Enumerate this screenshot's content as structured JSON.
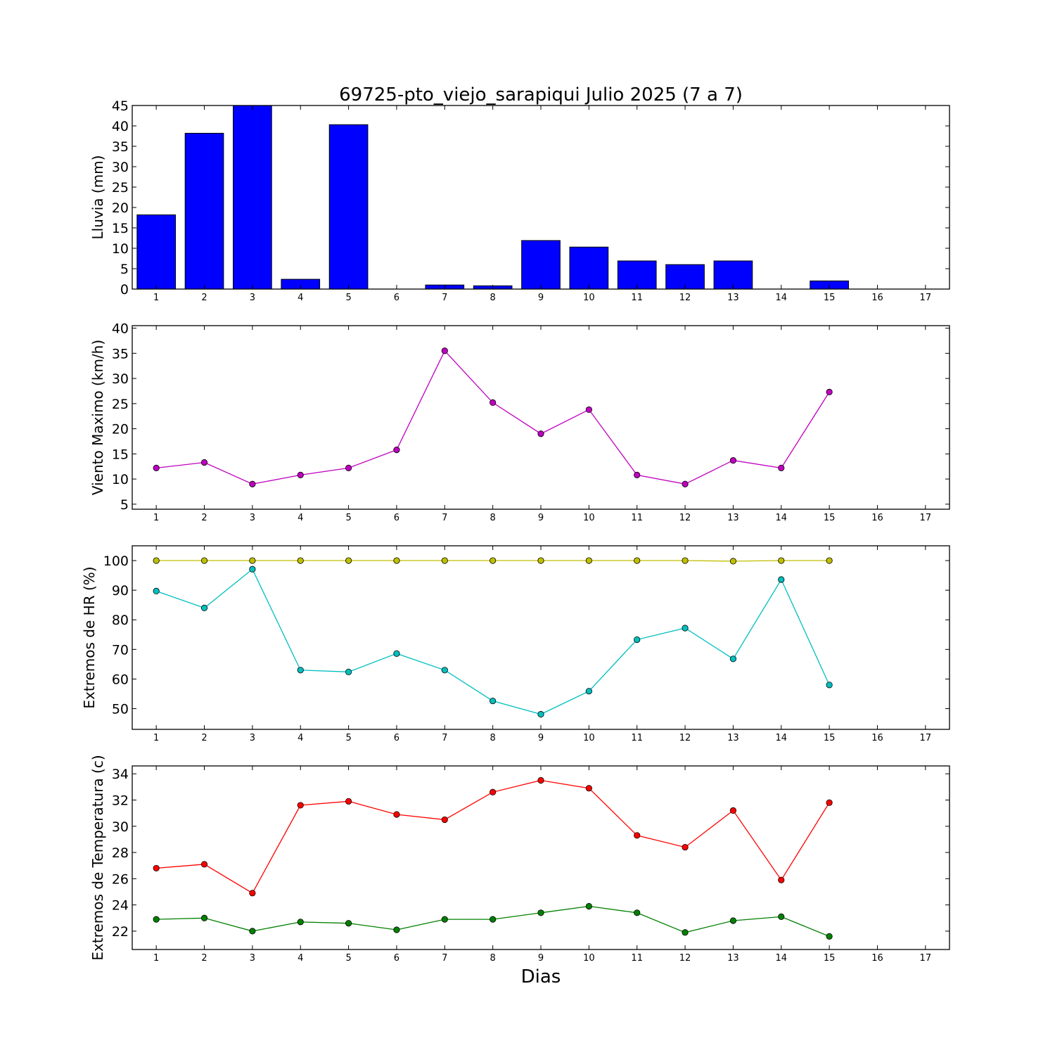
{
  "title": "69725-pto_viejo_sarapiqui Julio 2025  (7 a 7)",
  "xlabel": "Dias",
  "chart_data": [
    {
      "type": "bar",
      "ylabel": "Lluvia (mm)",
      "ylim": [
        0,
        45
      ],
      "yticks": [
        0,
        5,
        10,
        15,
        20,
        25,
        30,
        35,
        40,
        45
      ],
      "xlim": [
        0.5,
        17.5
      ],
      "xticks": [
        1,
        2,
        3,
        4,
        5,
        6,
        7,
        8,
        9,
        10,
        11,
        12,
        13,
        14,
        15,
        16,
        17
      ],
      "grid": false,
      "series": [
        {
          "color": "#0000ff",
          "x": [
            1,
            2,
            3,
            4,
            5,
            6,
            7,
            8,
            9,
            10,
            11,
            12,
            13,
            14,
            15
          ],
          "values": [
            18.2,
            38.2,
            45.0,
            2.4,
            40.3,
            0.0,
            1.0,
            0.8,
            11.9,
            10.3,
            6.9,
            6.0,
            6.9,
            0.0,
            2.0
          ]
        }
      ]
    },
    {
      "type": "line",
      "ylabel": "Viento Maximo (km/h)",
      "ylim": [
        4,
        40.5
      ],
      "yticks": [
        5,
        10,
        15,
        20,
        25,
        30,
        35,
        40
      ],
      "xlim": [
        0.5,
        17.5
      ],
      "xticks": [
        1,
        2,
        3,
        4,
        5,
        6,
        7,
        8,
        9,
        10,
        11,
        12,
        13,
        14,
        15,
        16,
        17
      ],
      "grid": false,
      "series": [
        {
          "color": "#bf00bf",
          "x": [
            1,
            2,
            3,
            4,
            5,
            6,
            7,
            8,
            9,
            10,
            11,
            12,
            13,
            14,
            15
          ],
          "values": [
            12.2,
            13.3,
            9.0,
            10.8,
            12.2,
            15.8,
            35.5,
            25.2,
            19.0,
            23.8,
            10.8,
            9.0,
            13.7,
            12.2,
            27.3
          ]
        }
      ]
    },
    {
      "type": "line",
      "ylabel": "Extremos de HR (%)",
      "ylim": [
        43,
        105
      ],
      "yticks": [
        50,
        60,
        70,
        80,
        90,
        100
      ],
      "xlim": [
        0.5,
        17.5
      ],
      "xticks": [
        1,
        2,
        3,
        4,
        5,
        6,
        7,
        8,
        9,
        10,
        11,
        12,
        13,
        14,
        15,
        16,
        17
      ],
      "grid": false,
      "series": [
        {
          "color": "#bfbf00",
          "x": [
            1,
            2,
            3,
            4,
            5,
            6,
            7,
            8,
            9,
            10,
            11,
            12,
            13,
            14,
            15
          ],
          "values": [
            100,
            100,
            100,
            100,
            100,
            100,
            100,
            100,
            100,
            100,
            100,
            100,
            99.8,
            100,
            100
          ]
        },
        {
          "color": "#00bfbf",
          "x": [
            1,
            2,
            3,
            4,
            5,
            6,
            7,
            8,
            9,
            10,
            11,
            12,
            13,
            14,
            15
          ],
          "values": [
            89.7,
            84.0,
            97.1,
            63.0,
            62.4,
            68.6,
            63.0,
            52.6,
            48.1,
            55.9,
            73.3,
            77.2,
            66.8,
            93.6,
            58.0
          ]
        }
      ]
    },
    {
      "type": "line",
      "ylabel": "Extremos de Temperatura (c)",
      "ylim": [
        20.6,
        34.6
      ],
      "yticks": [
        22,
        24,
        26,
        28,
        30,
        32,
        34
      ],
      "xlim": [
        0.5,
        17.5
      ],
      "xticks": [
        1,
        2,
        3,
        4,
        5,
        6,
        7,
        8,
        9,
        10,
        11,
        12,
        13,
        14,
        15,
        16,
        17
      ],
      "grid": false,
      "series": [
        {
          "color": "#ff0000",
          "x": [
            1,
            2,
            3,
            4,
            5,
            6,
            7,
            8,
            9,
            10,
            11,
            12,
            13,
            14,
            15
          ],
          "values": [
            26.8,
            27.1,
            24.9,
            31.6,
            31.9,
            30.9,
            30.5,
            32.6,
            33.5,
            32.9,
            29.3,
            28.4,
            31.2,
            25.9,
            31.8
          ]
        },
        {
          "color": "#008000",
          "x": [
            1,
            2,
            3,
            4,
            5,
            6,
            7,
            8,
            9,
            10,
            11,
            12,
            13,
            14,
            15
          ],
          "values": [
            22.9,
            23.0,
            22.0,
            22.7,
            22.6,
            22.1,
            22.9,
            22.9,
            23.4,
            23.9,
            23.4,
            21.9,
            22.8,
            23.1,
            21.6
          ]
        }
      ]
    }
  ]
}
